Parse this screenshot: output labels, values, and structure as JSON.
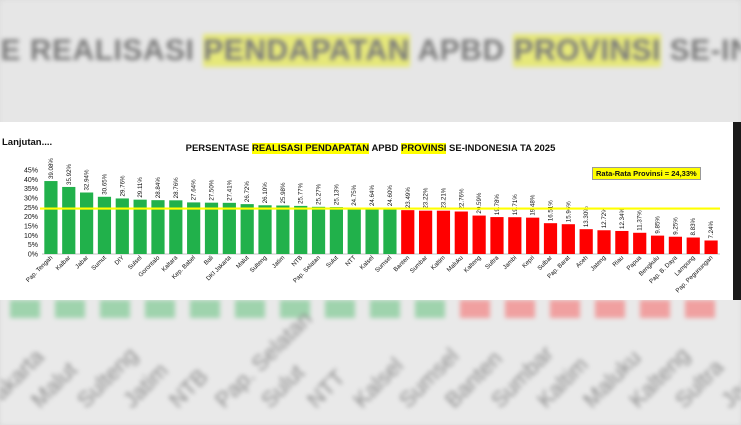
{
  "backdrop": {
    "title_pre": "SE REALISASI ",
    "title_hl1": "PENDAPATAN",
    "title_mid": " APBD ",
    "title_hl2": "PROVINSI",
    "title_post": " SE-INDONESIA",
    "bottom_labels": [
      "Jakarta",
      "Malut",
      "Sulteng",
      "Jatim",
      "NTB",
      "Pap. Selatan",
      "Sulut",
      "NTT",
      "Kalsel",
      "Sumsel",
      "Banten",
      "Sumbar",
      "Kaltim",
      "Maluku",
      "Kalteng",
      "Sultra",
      "Jambi"
    ]
  },
  "note": "Lanjutan....",
  "title_parts": {
    "pre": "PERSENTASE ",
    "hl1": "REALISASI PENDAPATAN",
    "mid": " APBD ",
    "hl2": "PROVINSI",
    "post": " SE-INDONESIA TA 2025"
  },
  "average_label": "Rata-Rata Provinsi = 24,33%",
  "colors": {
    "above": "#21b14b",
    "below": "#ff0000",
    "average_line": "#ffff00"
  },
  "chart_data": {
    "type": "bar",
    "categories": [
      "Pap. Tengah",
      "Kalbar",
      "Jabar",
      "Sumut",
      "DIY",
      "Sulsel",
      "Gorontalo",
      "Kaltara",
      "Kep. Babel",
      "Bali",
      "DKI Jakarta",
      "Malut",
      "Sulteng",
      "Jatim",
      "NTB",
      "Pap. Selatan",
      "Sulut",
      "NTT",
      "Kalsel",
      "Sumsel",
      "Banten",
      "Sumbar",
      "Kaltim",
      "Maluku",
      "Kalteng",
      "Sultra",
      "Jambi",
      "Kepri",
      "Sulbar",
      "Pap. Barat",
      "Aceh",
      "Jateng",
      "Riau",
      "Papua",
      "Bengkulu",
      "Pap. B. Daya",
      "Lampung",
      "Pap. Pegunungan"
    ],
    "values": [
      39.08,
      35.92,
      32.94,
      30.65,
      29.76,
      29.11,
      28.84,
      28.76,
      27.64,
      27.5,
      27.41,
      26.72,
      26.1,
      25.98,
      25.77,
      25.27,
      25.13,
      24.75,
      24.64,
      24.6,
      23.49,
      23.22,
      23.21,
      22.76,
      20.59,
      19.78,
      19.71,
      19.48,
      16.51,
      15.96,
      13.3,
      12.72,
      12.34,
      11.37,
      9.85,
      9.25,
      8.83,
      7.24
    ],
    "value_labels": [
      "39.08%",
      "35.92%",
      "32.94%",
      "30.65%",
      "29.76%",
      "29.11%",
      "28.84%",
      "28.76%",
      "27.64%",
      "27.50%",
      "27.41%",
      "26.72%",
      "26.10%",
      "25.98%",
      "25.77%",
      "25.27%",
      "25.13%",
      "24.75%",
      "24.64%",
      "24.60%",
      "23.49%",
      "23.22%",
      "23.21%",
      "22.76%",
      "20.59%",
      "19.78%",
      "19.71%",
      "19.48%",
      "16.51%",
      "15.96%",
      "13.30%",
      "12.72%",
      "12.34%",
      "11.37%",
      "9.85%",
      "9.25%",
      "8.83%",
      "7.24%"
    ],
    "average": 24.33,
    "ylim": [
      0,
      45
    ],
    "yticks": [
      "0%",
      "5%",
      "10%",
      "15%",
      "20%",
      "25%",
      "30%",
      "35%",
      "40%",
      "45%"
    ],
    "grid": false
  }
}
